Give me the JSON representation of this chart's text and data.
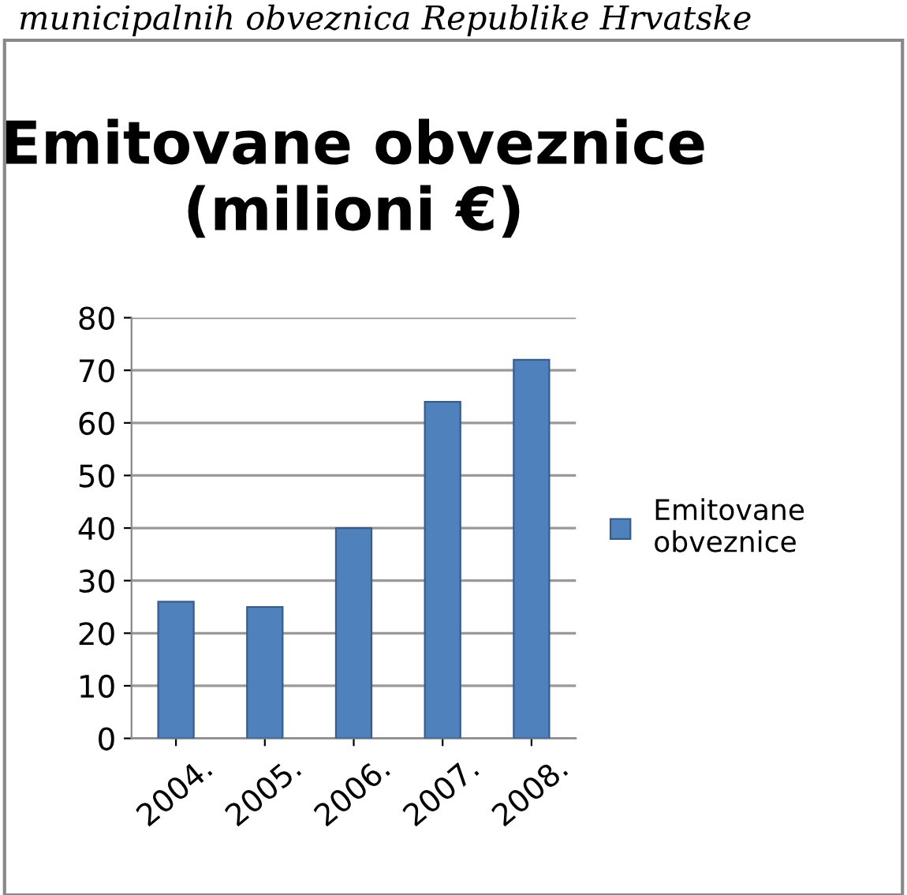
{
  "chart_data": {
    "type": "bar",
    "title": "Emitovane obveznice\n(milioni €)",
    "annotations": [
      "municipalnih obveznica Republike Hrvatske"
    ],
    "categories": [
      "2004.",
      "2005.",
      "2006.",
      "2007.",
      "2008."
    ],
    "series": [
      {
        "name": "Emitovane\nobveznice",
        "color": "#4f81bd",
        "values": [
          26,
          25,
          40,
          64,
          72
        ]
      }
    ],
    "ylim": [
      0,
      80
    ],
    "yticks": [
      0,
      10,
      20,
      30,
      40,
      50,
      60,
      70,
      80
    ],
    "grid": "y",
    "legend": "right"
  }
}
